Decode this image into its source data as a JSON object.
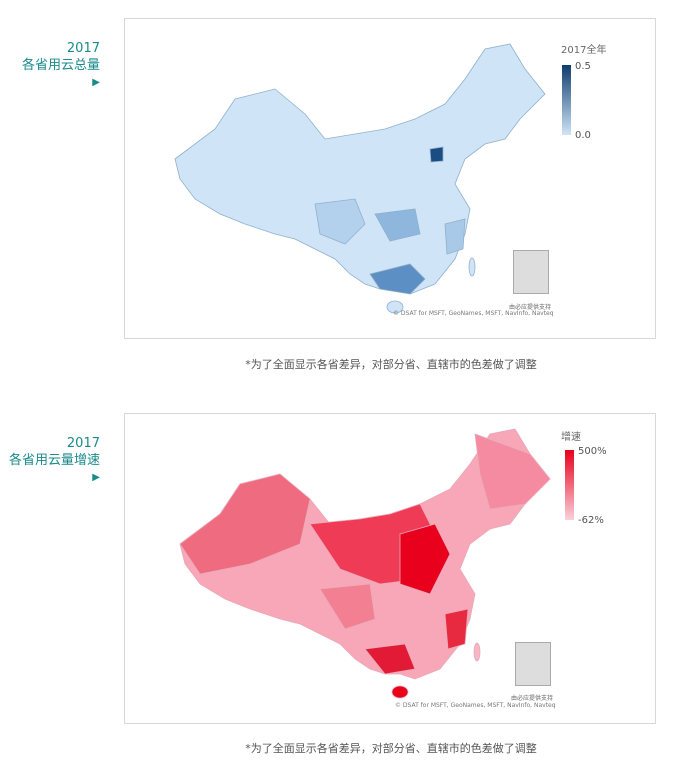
{
  "section1": {
    "year": "2017",
    "title": "各省用云总量",
    "arrow_icon": "▶",
    "legend": {
      "title": "2017全年",
      "max": "0.5",
      "min": "0.0",
      "color_max": "#0e3d6e",
      "color_min": "#cfe4f7"
    },
    "bing_label": "由必应提供支持",
    "attribution": "© DSAT for MSFT, GeoNames, MSFT, NavInfo, Navteq",
    "caption": "*为了全面显示各省差异，对部分省、直辖市的色差做了调整"
  },
  "section2": {
    "year": "2017",
    "title": "各省用云量增速",
    "arrow_icon": "▶",
    "legend": {
      "title": "增速",
      "max": "500%",
      "min": "-62%",
      "color_max": "#e8001c",
      "color_min": "#f9d0da"
    },
    "bing_label": "由必应提供支持",
    "attribution": "© DSAT for MSFT, GeoNames, MSFT, NavInfo, Navteq",
    "caption": "*为了全面显示各省差异，对部分省、直辖市的色差做了调整"
  }
}
